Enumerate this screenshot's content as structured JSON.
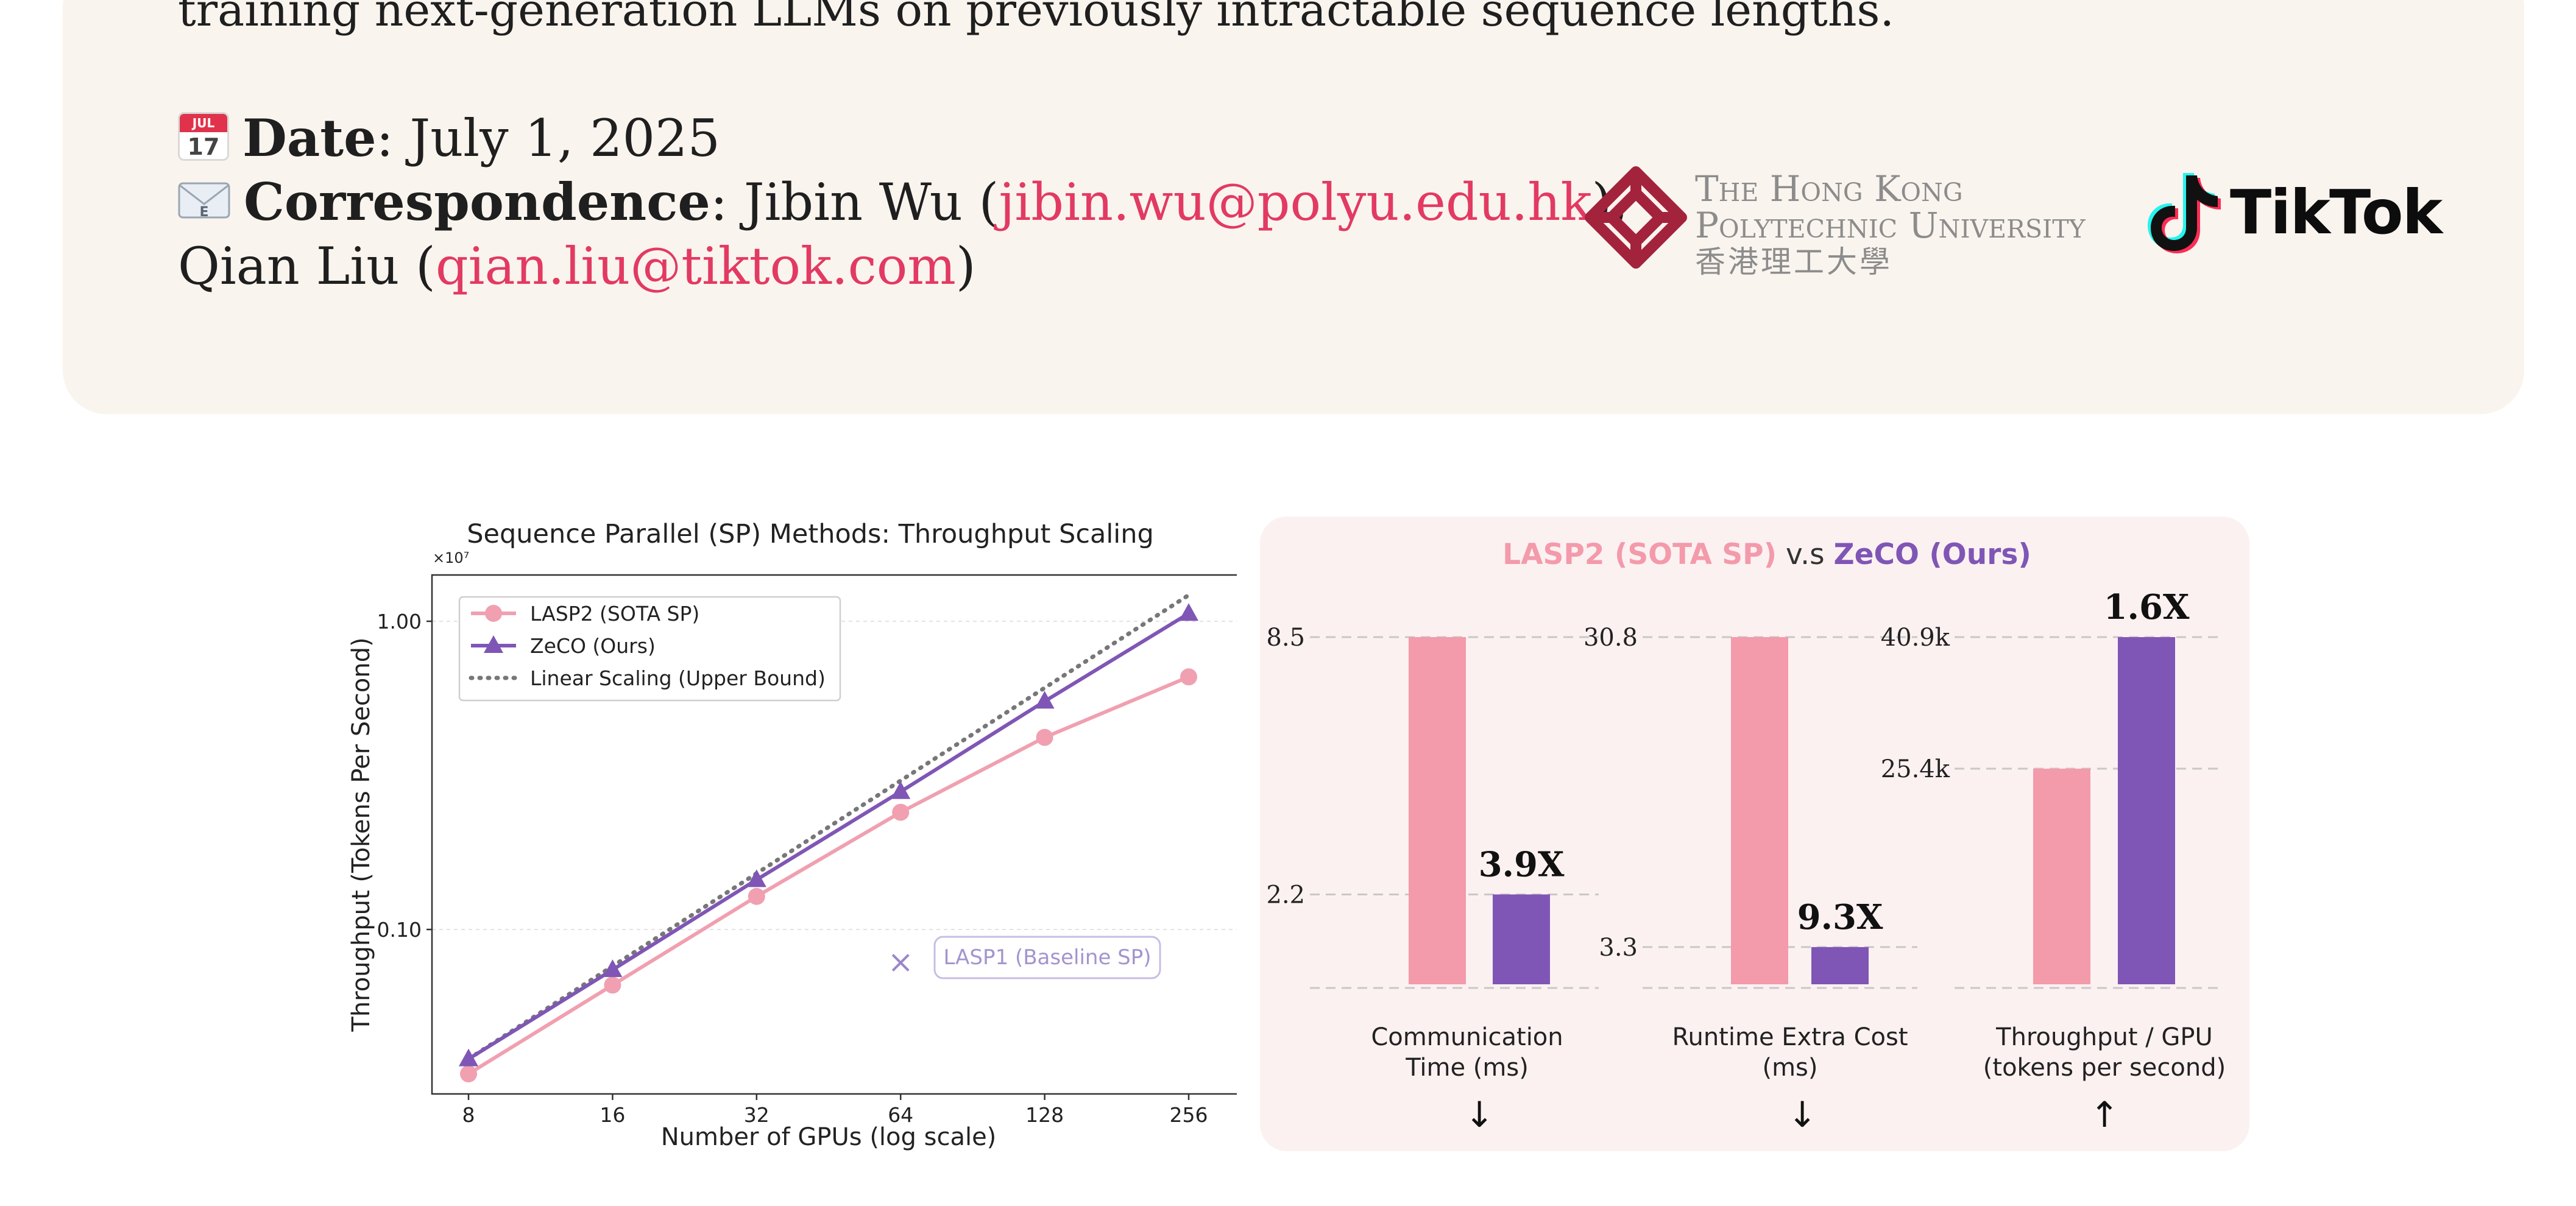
{
  "header": {
    "intro_tail": "training next-generation LLMs on previously intractable sequence lengths.",
    "date_label": "Date",
    "date_value": "July 1, 2025",
    "correspondence_label": "Correspondence",
    "author1": "Jibin Wu",
    "author1_email": "jibin.wu@polyu.edu.hk",
    "author2": "Qian Liu",
    "author2_email": "qian.liu@tiktok.com",
    "calendar_icon": {
      "month": "JUL",
      "day": "17"
    },
    "envelope_icon_letter": "E",
    "logos": {
      "polyu_line1": "The Hong Kong",
      "polyu_line2": "Polytechnic University",
      "polyu_line3": "香港理工大學",
      "tiktok": "TikTok"
    }
  },
  "figure_left": {
    "chart_data": {
      "type": "line",
      "title": "Sequence Parallel (SP) Methods: Throughput Scaling",
      "xlabel": "Number of GPUs (log scale)",
      "ylabel": "Throughput (Tokens Per Second)",
      "y_multiplier": "×10⁷",
      "x_scale": "log2",
      "y_scale": "log10",
      "x": [
        8,
        16,
        32,
        64,
        128,
        256
      ],
      "x_tick_labels": [
        "8",
        "16",
        "32",
        "64",
        "128",
        "256"
      ],
      "y_tick_values": [
        0.1,
        1.0
      ],
      "y_tick_labels": [
        "0.10",
        "1.00"
      ],
      "ylim": [
        0.028,
        1.45
      ],
      "grid": true,
      "legend_position": "top-left",
      "series": [
        {
          "name": "LASP2 (SOTA SP)",
          "color": "#f0a0b0",
          "marker": "circle",
          "style": "solid",
          "values": [
            0.034,
            0.066,
            0.128,
            0.24,
            0.42,
            0.66
          ]
        },
        {
          "name": "ZeCO (Ours)",
          "color": "#7f56b5",
          "marker": "triangle",
          "style": "solid",
          "values": [
            0.038,
            0.074,
            0.145,
            0.28,
            0.55,
            1.06
          ]
        },
        {
          "name": "Linear Scaling (Upper Bound)",
          "color": "#777777",
          "marker": "none",
          "style": "dotted",
          "values": [
            0.038,
            0.076,
            0.152,
            0.304,
            0.608,
            1.216
          ]
        }
      ],
      "annotations": [
        {
          "label": "LASP1 (Baseline SP)",
          "x": 64,
          "y": 0.078,
          "marker": "x",
          "color": "#9b86c9"
        }
      ]
    }
  },
  "figure_right": {
    "title_lasp2": "LASP2 (SOTA SP)",
    "title_vs": " v.s ",
    "title_zeco": "ZeCO (Ours)",
    "colors": {
      "lasp2": "#f39aab",
      "zeco": "#7f56b5"
    },
    "chart_data": [
      {
        "type": "bar",
        "label_line1": "Communication",
        "label_line2": "Time (ms)",
        "arrow": "↓",
        "categories": [
          "LASP2 (SOTA SP)",
          "ZeCO (Ours)"
        ],
        "values": [
          8.5,
          2.2
        ],
        "value_labels": [
          "8.5",
          "2.2"
        ],
        "ratio": "3.9X"
      },
      {
        "type": "bar",
        "label_line1": "Runtime Extra Cost",
        "label_line2": "(ms)",
        "arrow": "↓",
        "categories": [
          "LASP2 (SOTA SP)",
          "ZeCO (Ours)"
        ],
        "values": [
          30.8,
          3.3
        ],
        "value_labels": [
          "30.8",
          "3.3"
        ],
        "ratio": "9.3X"
      },
      {
        "type": "bar",
        "label_line1": "Throughput / GPU",
        "label_line2": "(tokens per second)",
        "arrow": "↑",
        "categories": [
          "LASP2 (SOTA SP)",
          "ZeCO (Ours)"
        ],
        "values": [
          25.4,
          40.9
        ],
        "value_labels": [
          "25.4k",
          "40.9k"
        ],
        "ratio": "1.6X"
      }
    ]
  }
}
